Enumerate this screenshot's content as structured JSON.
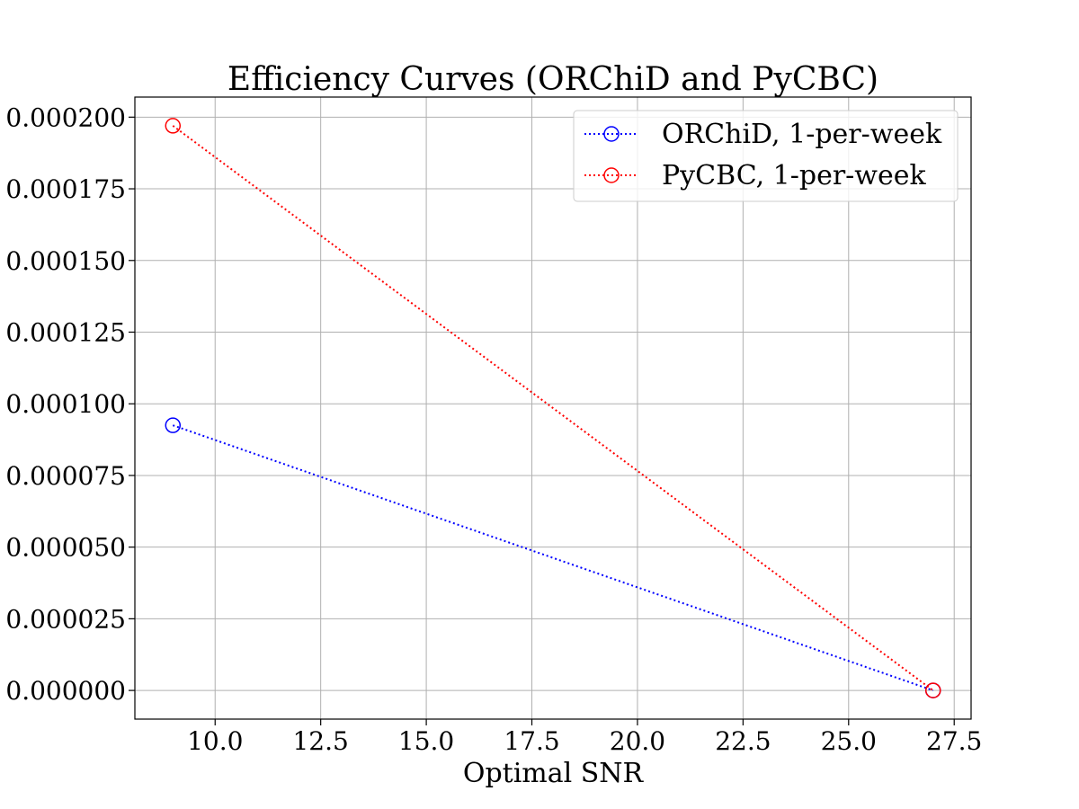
{
  "chart_data": {
    "type": "line",
    "title": "Efficiency Curves (ORChiD and PyCBC)",
    "xlabel": "Optimal SNR",
    "ylabel": "",
    "xlim": [
      8.1,
      27.9
    ],
    "ylim": [
      -1e-05,
      0.000207
    ],
    "x_ticks": [
      "10.0",
      "12.5",
      "15.0",
      "17.5",
      "20.0",
      "22.5",
      "25.0",
      "27.5"
    ],
    "x_tick_values": [
      10.0,
      12.5,
      15.0,
      17.5,
      20.0,
      22.5,
      25.0,
      27.5
    ],
    "y_ticks": [
      "0.000000",
      "0.000025",
      "0.000050",
      "0.000075",
      "0.000100",
      "0.000125",
      "0.000150",
      "0.000175",
      "0.000200"
    ],
    "y_tick_values": [
      0.0,
      2.5e-05,
      5e-05,
      7.5e-05,
      0.0001,
      0.000125,
      0.00015,
      0.000175,
      0.0002
    ],
    "grid": true,
    "legend_position": "top-right",
    "series": [
      {
        "name": "ORChiD, 1-per-week",
        "color": "#0000ff",
        "line_style": "dotted",
        "marker": "open-circle",
        "x": [
          9.0,
          27.0
        ],
        "y": [
          9.25e-05,
          0.0
        ]
      },
      {
        "name": "PyCBC, 1-per-week",
        "color": "#ff0000",
        "line_style": "dotted",
        "marker": "open-circle",
        "x": [
          9.0,
          27.0
        ],
        "y": [
          0.000197,
          0.0
        ]
      }
    ]
  }
}
